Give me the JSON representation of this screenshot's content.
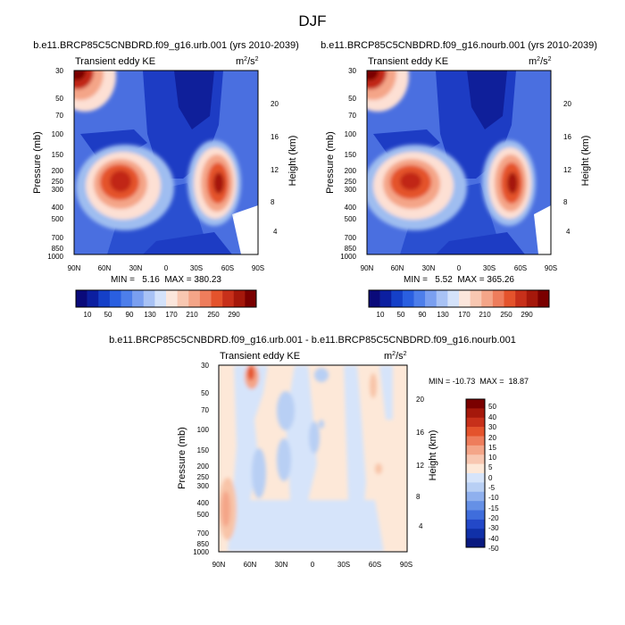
{
  "page": {
    "title": "DJF"
  },
  "chart_data": [
    {
      "type": "heatmap",
      "title": "b.e11.BRCP85C5CNBDRD.f09_g16.urb.001 (yrs 2010-2039)",
      "subtitle_left": "Transient eddy KE",
      "units": "m2/s2",
      "units_base": "m",
      "units_sup1": "2",
      "units_slash": "/s",
      "units_sup2": "2",
      "xlabel": "",
      "ylabel": "Pressure (mb)",
      "ylabel_right": "Height (km)",
      "x_ticks": [
        "90N",
        "60N",
        "30N",
        "0",
        "30S",
        "60S",
        "90S"
      ],
      "y_ticks": [
        "30",
        "50",
        "70",
        "100",
        "150",
        "200",
        "250",
        "300",
        "400",
        "500",
        "700",
        "850",
        "1000"
      ],
      "y_right_ticks": [
        "20",
        "16",
        "12",
        "8",
        "4"
      ],
      "min_label": "MIN =   5.16  MAX = 380.23",
      "min": 5.16,
      "max": 380.23,
      "colorbar_labels": [
        "10",
        "50",
        "90",
        "130",
        "170",
        "210",
        "250",
        "290"
      ],
      "features": [
        {
          "lat": 30,
          "p": 250,
          "value": 300
        },
        {
          "lat": -55,
          "p": 250,
          "value": 380
        },
        {
          "lat": 80,
          "p": 30,
          "value": 300
        }
      ]
    },
    {
      "type": "heatmap",
      "title": "b.e11.BRCP85C5CNBDRD.f09_g16.nourb.001 (yrs 2010-2039)",
      "subtitle_left": "Transient eddy KE",
      "units": "m2/s2",
      "units_base": "m",
      "units_sup1": "2",
      "units_slash": "/s",
      "units_sup2": "2",
      "xlabel": "",
      "ylabel": "Pressure (mb)",
      "ylabel_right": "Height (km)",
      "x_ticks": [
        "90N",
        "60N",
        "30N",
        "0",
        "30S",
        "60S",
        "90S"
      ],
      "y_ticks": [
        "30",
        "50",
        "70",
        "100",
        "150",
        "200",
        "250",
        "300",
        "400",
        "500",
        "700",
        "850",
        "1000"
      ],
      "y_right_ticks": [
        "20",
        "16",
        "12",
        "8",
        "4"
      ],
      "min_label": "MIN =   5.52  MAX = 365.26",
      "min": 5.52,
      "max": 365.26,
      "colorbar_labels": [
        "10",
        "50",
        "90",
        "130",
        "170",
        "210",
        "250",
        "290"
      ],
      "features": [
        {
          "lat": 35,
          "p": 250,
          "value": 290
        },
        {
          "lat": -55,
          "p": 250,
          "value": 365
        },
        {
          "lat": 80,
          "p": 30,
          "value": 290
        }
      ]
    },
    {
      "type": "heatmap",
      "title": "b.e11.BRCP85C5CNBDRD.f09_g16.urb.001 - b.e11.BRCP85C5CNBDRD.f09_g16.nourb.001",
      "subtitle_left": "Transient eddy KE",
      "units": "m2/s2",
      "units_base": "m",
      "units_sup1": "2",
      "units_slash": "/s",
      "units_sup2": "2",
      "xlabel": "",
      "ylabel": "Pressure (mb)",
      "ylabel_right": "Height (km)",
      "x_ticks": [
        "90N",
        "60N",
        "30N",
        "0",
        "30S",
        "60S",
        "90S"
      ],
      "y_ticks": [
        "30",
        "50",
        "70",
        "100",
        "150",
        "200",
        "250",
        "300",
        "400",
        "500",
        "700",
        "850",
        "1000"
      ],
      "y_right_ticks": [
        "20",
        "16",
        "12",
        "8",
        "4"
      ],
      "min_label": "MIN = -10.73  MAX =  18.87",
      "min": -10.73,
      "max": 18.87,
      "colorbar_labels": [
        "50",
        "40",
        "30",
        "20",
        "15",
        "10",
        "5",
        "0",
        "-5",
        "-10",
        "-15",
        "-20",
        "-30",
        "-40",
        "-50"
      ]
    }
  ]
}
